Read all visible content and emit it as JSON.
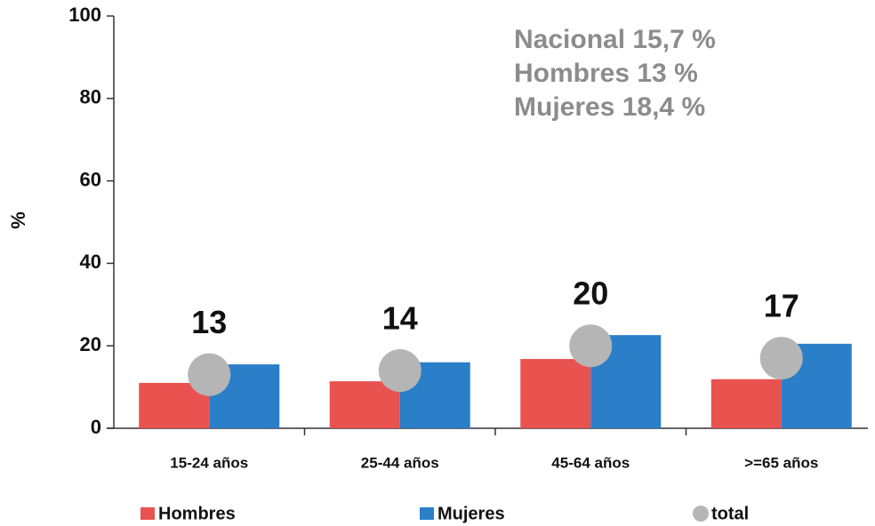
{
  "chart_data": {
    "type": "bar",
    "ylabel": "%",
    "categories": [
      "15-24 años",
      "25-44 años",
      "45-64 años",
      ">=65 años"
    ],
    "series": [
      {
        "name": "Hombres",
        "color": "#e8524f",
        "values": [
          11,
          11.4,
          16.8,
          11.9
        ]
      },
      {
        "name": "Mujeres",
        "color": "#2a7fc8",
        "values": [
          15.5,
          16,
          22.6,
          20.5
        ]
      },
      {
        "name": "total",
        "color": "#b5b5b5",
        "type": "scatter",
        "values": [
          13,
          14,
          20,
          17
        ]
      }
    ],
    "annotations": [
      "Nacional 15,7  %",
      "Hombres 13  %",
      "Mujeres 18,4  %"
    ],
    "ylim": [
      0,
      100
    ],
    "yticks": [
      0,
      20,
      40,
      60,
      80,
      100
    ]
  }
}
